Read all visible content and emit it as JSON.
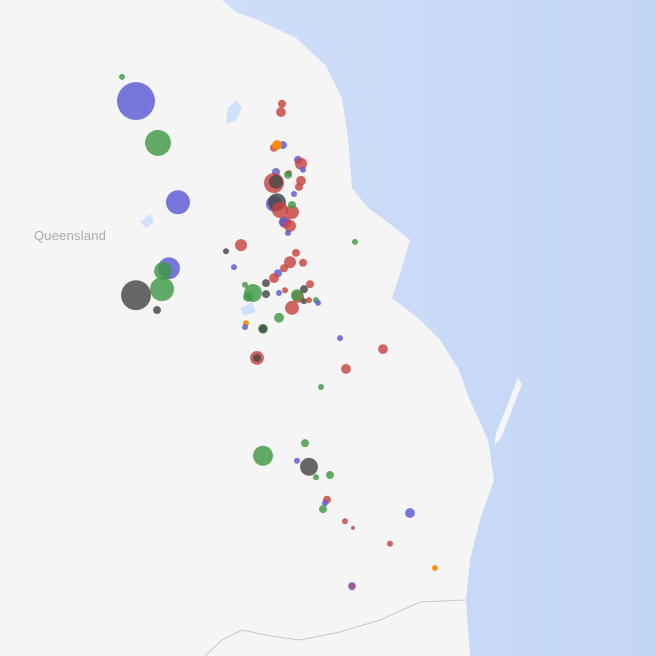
{
  "map": {
    "region_label": "Queensland",
    "colors": {
      "land": "#f5f5f5",
      "sea": "#d3e1fb",
      "sea_deep": "#c4d6f6",
      "water": "#cfe0fb",
      "border": "#c8c8c8",
      "red": "#c8443f",
      "blue": "#5a5ad6",
      "green": "#3f9a45",
      "dark": "#474747",
      "orange": "#ff8a00"
    },
    "point_fields": [
      "lon",
      "lat",
      "value",
      "category"
    ],
    "points": [
      [
        147.02,
        -18.98,
        90,
        "blue"
      ],
      [
        146.74,
        -18.54,
        2.25,
        "green"
      ],
      [
        147.46,
        -19.74,
        42,
        "green"
      ],
      [
        147.86,
        -20.82,
        36,
        "blue"
      ],
      [
        147.68,
        -22.02,
        30,
        "blue"
      ],
      [
        147.56,
        -22.07,
        20,
        "green"
      ],
      [
        147.54,
        -22.4,
        36,
        "green"
      ],
      [
        147.02,
        -22.51,
        56,
        "dark"
      ],
      [
        147.44,
        -22.78,
        4,
        "dark"
      ],
      [
        149.94,
        -19.03,
        4,
        "red"
      ],
      [
        149.92,
        -19.18,
        6,
        "red"
      ],
      [
        149.78,
        -19.83,
        4,
        "red"
      ],
      [
        149.96,
        -19.78,
        4,
        "blue"
      ],
      [
        149.84,
        -19.78,
        6,
        "orange"
      ],
      [
        150.26,
        -20.05,
        4,
        "blue"
      ],
      [
        150.32,
        -20.12,
        9,
        "red"
      ],
      [
        150.36,
        -20.23,
        2.25,
        "blue"
      ],
      [
        149.82,
        -20.27,
        4,
        "blue"
      ],
      [
        150.08,
        -20.29,
        2.25,
        "red"
      ],
      [
        150.06,
        -20.32,
        4,
        "green"
      ],
      [
        149.78,
        -20.47,
        25,
        "red"
      ],
      [
        149.82,
        -20.45,
        12,
        "dark"
      ],
      [
        150.32,
        -20.43,
        6,
        "red"
      ],
      [
        150.28,
        -20.54,
        4,
        "red"
      ],
      [
        150.18,
        -20.67,
        2.25,
        "blue"
      ],
      [
        149.78,
        -20.85,
        16,
        "blue"
      ],
      [
        149.84,
        -20.82,
        20,
        "dark"
      ],
      [
        149.9,
        -20.96,
        16,
        "red"
      ],
      [
        150.14,
        -21.0,
        12,
        "red"
      ],
      [
        150.0,
        -21.18,
        9,
        "red"
      ],
      [
        149.98,
        -21.18,
        6,
        "blue"
      ],
      [
        150.1,
        -21.25,
        9,
        "red"
      ],
      [
        150.06,
        -21.38,
        2.25,
        "blue"
      ],
      [
        150.14,
        -20.87,
        4,
        "green"
      ],
      [
        149.12,
        -21.6,
        9,
        "red"
      ],
      [
        148.82,
        -21.71,
        2.25,
        "dark"
      ],
      [
        148.98,
        -22.0,
        2.25,
        "blue"
      ],
      [
        150.22,
        -21.74,
        4,
        "red"
      ],
      [
        150.36,
        -21.92,
        4,
        "red"
      ],
      [
        150.1,
        -21.91,
        9,
        "red"
      ],
      [
        149.98,
        -22.02,
        4,
        "red"
      ],
      [
        149.86,
        -22.11,
        4,
        "blue"
      ],
      [
        149.78,
        -22.2,
        6,
        "red"
      ],
      [
        149.2,
        -22.32,
        2.25,
        "green"
      ],
      [
        149.62,
        -22.29,
        4,
        "dark"
      ],
      [
        149.62,
        -22.49,
        4,
        "dark"
      ],
      [
        149.36,
        -22.47,
        20,
        "green"
      ],
      [
        149.26,
        -22.54,
        6,
        "green"
      ],
      [
        149.88,
        -22.47,
        2.25,
        "blue"
      ],
      [
        150.0,
        -22.42,
        2.25,
        "red"
      ],
      [
        150.26,
        -22.54,
        9,
        "red"
      ],
      [
        150.24,
        -22.51,
        9,
        "green"
      ],
      [
        150.38,
        -22.4,
        4,
        "dark"
      ],
      [
        150.38,
        -22.62,
        2.25,
        "dark"
      ],
      [
        150.48,
        -22.6,
        2.25,
        "red"
      ],
      [
        150.5,
        -22.31,
        4,
        "red"
      ],
      [
        150.62,
        -22.6,
        2.25,
        "green"
      ],
      [
        150.66,
        -22.65,
        2.25,
        "blue"
      ],
      [
        150.14,
        -22.74,
        12,
        "red"
      ],
      [
        149.88,
        -22.92,
        6,
        "green"
      ],
      [
        149.22,
        -23.02,
        2.25,
        "orange"
      ],
      [
        149.2,
        -23.09,
        2.25,
        "blue"
      ],
      [
        149.56,
        -23.12,
        6,
        "green"
      ],
      [
        149.56,
        -23.12,
        4,
        "dark"
      ],
      [
        149.44,
        -23.65,
        12,
        "red"
      ],
      [
        149.44,
        -23.65,
        4,
        "dark"
      ],
      [
        151.1,
        -23.29,
        2.25,
        "blue"
      ],
      [
        151.96,
        -23.49,
        6,
        "red"
      ],
      [
        151.22,
        -23.85,
        6,
        "red"
      ],
      [
        151.4,
        -21.54,
        2.25,
        "green"
      ],
      [
        150.72,
        -24.18,
        2.25,
        "green"
      ],
      [
        149.56,
        -25.43,
        25,
        "green"
      ],
      [
        150.4,
        -25.2,
        4,
        "green"
      ],
      [
        150.24,
        -25.52,
        2.25,
        "blue"
      ],
      [
        150.48,
        -25.63,
        20,
        "dark"
      ],
      [
        150.62,
        -25.82,
        2.25,
        "green"
      ],
      [
        150.9,
        -25.78,
        4,
        "green"
      ],
      [
        150.84,
        -26.23,
        4,
        "red"
      ],
      [
        150.8,
        -26.29,
        2.25,
        "blue"
      ],
      [
        150.76,
        -26.4,
        4,
        "green"
      ],
      [
        152.5,
        -26.47,
        6,
        "blue"
      ],
      [
        151.2,
        -26.62,
        2.25,
        "red"
      ],
      [
        151.36,
        -26.74,
        1,
        "red"
      ],
      [
        152.1,
        -27.03,
        2.25,
        "red"
      ],
      [
        153.0,
        -27.47,
        2.25,
        "orange"
      ],
      [
        151.34,
        -27.8,
        4,
        "blue"
      ],
      [
        151.34,
        -27.8,
        1.5,
        "red"
      ]
    ]
  }
}
